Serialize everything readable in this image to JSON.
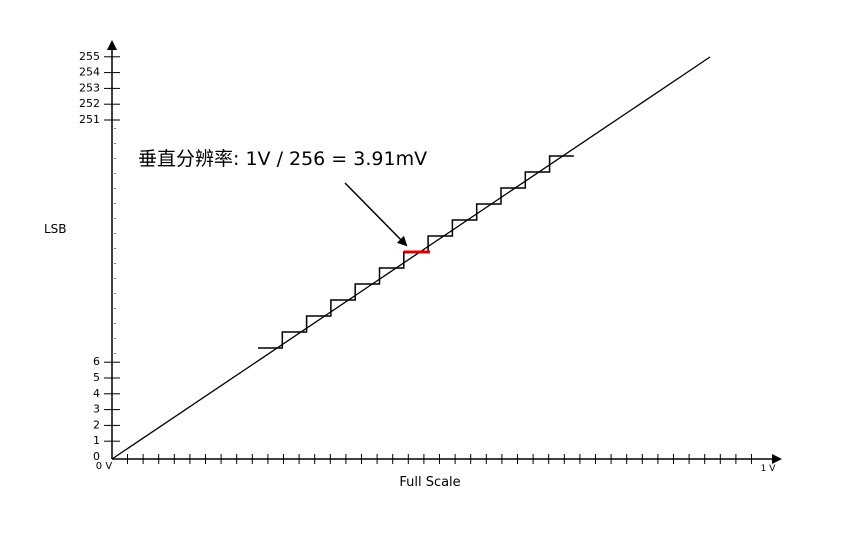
{
  "y_axis": {
    "label": "LSB",
    "low_ticks": [
      "0",
      "1",
      "2",
      "3",
      "4",
      "5",
      "6"
    ],
    "high_ticks": [
      "251",
      "252",
      "253",
      "254",
      "255"
    ]
  },
  "x_axis": {
    "label": "Full Scale",
    "start": "0 V",
    "end": "1 V"
  },
  "annotation": "垂直分辨率: 1V / 256 = 3.91mV"
}
